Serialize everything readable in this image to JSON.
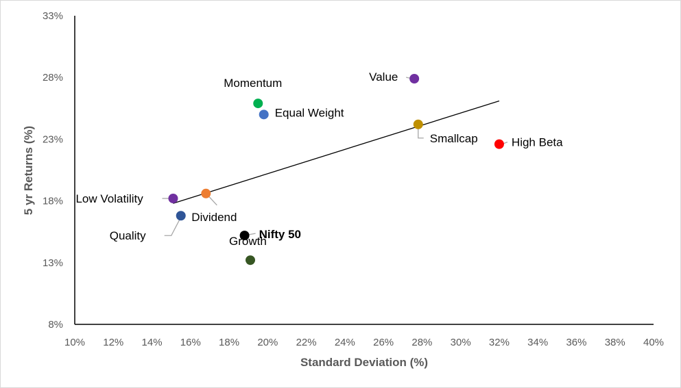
{
  "chart_data": {
    "type": "scatter",
    "xlabel": "Standard Deviation (%)",
    "ylabel": "5 yr Returns (%)",
    "xlim": [
      10,
      40
    ],
    "ylim": [
      8,
      33
    ],
    "x_ticks": [
      "10%",
      "12%",
      "14%",
      "16%",
      "18%",
      "20%",
      "22%",
      "24%",
      "26%",
      "28%",
      "30%",
      "32%",
      "34%",
      "36%",
      "38%",
      "40%"
    ],
    "y_ticks": [
      "8%",
      "13%",
      "18%",
      "23%",
      "28%",
      "33%"
    ],
    "grid": false,
    "legend": "none",
    "points": [
      {
        "label": "Momentum",
        "x": 19.5,
        "y": 25.9,
        "color": "#00b050"
      },
      {
        "label": "Equal Weight",
        "x": 19.8,
        "y": 25.0,
        "color": "#4472c4"
      },
      {
        "label": "Value",
        "x": 27.6,
        "y": 27.9,
        "color": "#7030a0"
      },
      {
        "label": "Smallcap",
        "x": 27.8,
        "y": 24.2,
        "color": "#bf9000"
      },
      {
        "label": "High Beta",
        "x": 32.0,
        "y": 22.6,
        "color": "#ff0000"
      },
      {
        "label": "Low Volatility",
        "x": 15.1,
        "y": 18.2,
        "color": "#7030a0"
      },
      {
        "label": "Dividend",
        "x": 16.8,
        "y": 18.6,
        "color": "#ed7d31"
      },
      {
        "label": "Quality",
        "x": 15.5,
        "y": 16.8,
        "color": "#2f5597"
      },
      {
        "label": "Nifty 50",
        "x": 18.8,
        "y": 15.2,
        "color": "#000000",
        "label_color": "#c55a11",
        "label_bold": true
      },
      {
        "label": "Growth",
        "x": 19.1,
        "y": 13.2,
        "color": "#375623"
      }
    ],
    "trendline": {
      "x": [
        15.1,
        32.0
      ],
      "y": [
        17.8,
        26.1
      ],
      "color": "#000000"
    }
  }
}
